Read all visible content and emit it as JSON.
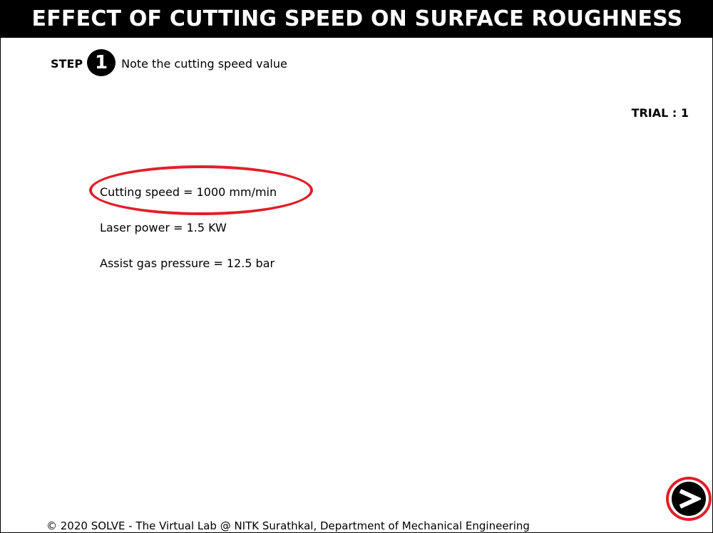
{
  "header": {
    "title": "EFFECT OF CUTTING SPEED ON SURFACE ROUGHNESS"
  },
  "step": {
    "label": "STEP",
    "number": "1",
    "instruction": "Note the cutting speed value"
  },
  "trial": {
    "text": "TRIAL : 1"
  },
  "parameters": [
    {
      "text": "Cutting speed = 1000 mm/min",
      "highlighted": true
    },
    {
      "text": "Laser power = 1.5 KW",
      "highlighted": false
    },
    {
      "text": "Assist gas pressure = 12.5 bar",
      "highlighted": false
    }
  ],
  "navigation": {
    "next_icon": "next-arrow-icon"
  },
  "footer": {
    "text": "© 2020 SOLVE - The Virtual Lab @ NITK Surathkal, Department of Mechanical Engineering"
  },
  "colors": {
    "title_bar": "#000000",
    "title_text": "#ffffff",
    "highlight": "#e0202a"
  }
}
